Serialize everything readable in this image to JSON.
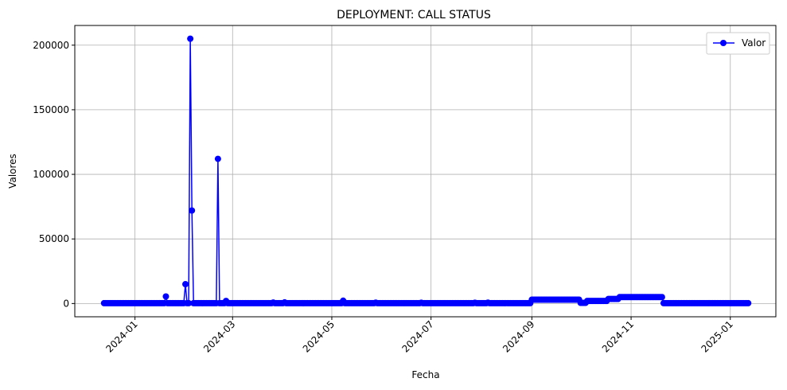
{
  "chart_data": {
    "type": "line",
    "title": "DEPLOYMENT: CALL STATUS",
    "xlabel": "Fecha",
    "ylabel": "Valores",
    "x_type": "date",
    "xlim": [
      "2023-11-25",
      "2025-01-29"
    ],
    "ylim": [
      -10250,
      215250
    ],
    "x_ticks": [
      "2024-01",
      "2024-03",
      "2024-05",
      "2024-07",
      "2024-09",
      "2024-11",
      "2025-01"
    ],
    "y_ticks": [
      0,
      50000,
      100000,
      150000,
      200000
    ],
    "grid": true,
    "legend": {
      "position": "top-right"
    },
    "series": [
      {
        "name": "Valor",
        "color": "#0000ff",
        "marker": "circle",
        "baseline": {
          "start": "2023-12-13",
          "end": "2025-01-12",
          "value": 300
        },
        "spikes": [
          {
            "x": "2024-01-20",
            "y": 5500
          },
          {
            "x": "2024-02-01",
            "y": 15000
          },
          {
            "x": "2024-02-04",
            "y": 205000
          },
          {
            "x": "2024-02-05",
            "y": 72000
          },
          {
            "x": "2024-02-21",
            "y": 112000
          },
          {
            "x": "2024-02-26",
            "y": 2000
          },
          {
            "x": "2024-03-26",
            "y": 800
          },
          {
            "x": "2024-04-02",
            "y": 900
          },
          {
            "x": "2024-05-08",
            "y": 2200
          },
          {
            "x": "2024-05-28",
            "y": 700
          },
          {
            "x": "2024-06-25",
            "y": 600
          },
          {
            "x": "2024-07-28",
            "y": 600
          },
          {
            "x": "2024-08-05",
            "y": 700
          }
        ],
        "plateaus": [
          {
            "start": "2024-09-01",
            "end": "2024-09-30",
            "value": 3000
          },
          {
            "start": "2024-10-01",
            "end": "2024-10-04",
            "value": 500
          },
          {
            "start": "2024-10-05",
            "end": "2024-10-17",
            "value": 2000
          },
          {
            "start": "2024-10-18",
            "end": "2024-10-24",
            "value": 3500
          },
          {
            "start": "2024-10-25",
            "end": "2024-11-20",
            "value": 5000
          }
        ]
      }
    ]
  }
}
